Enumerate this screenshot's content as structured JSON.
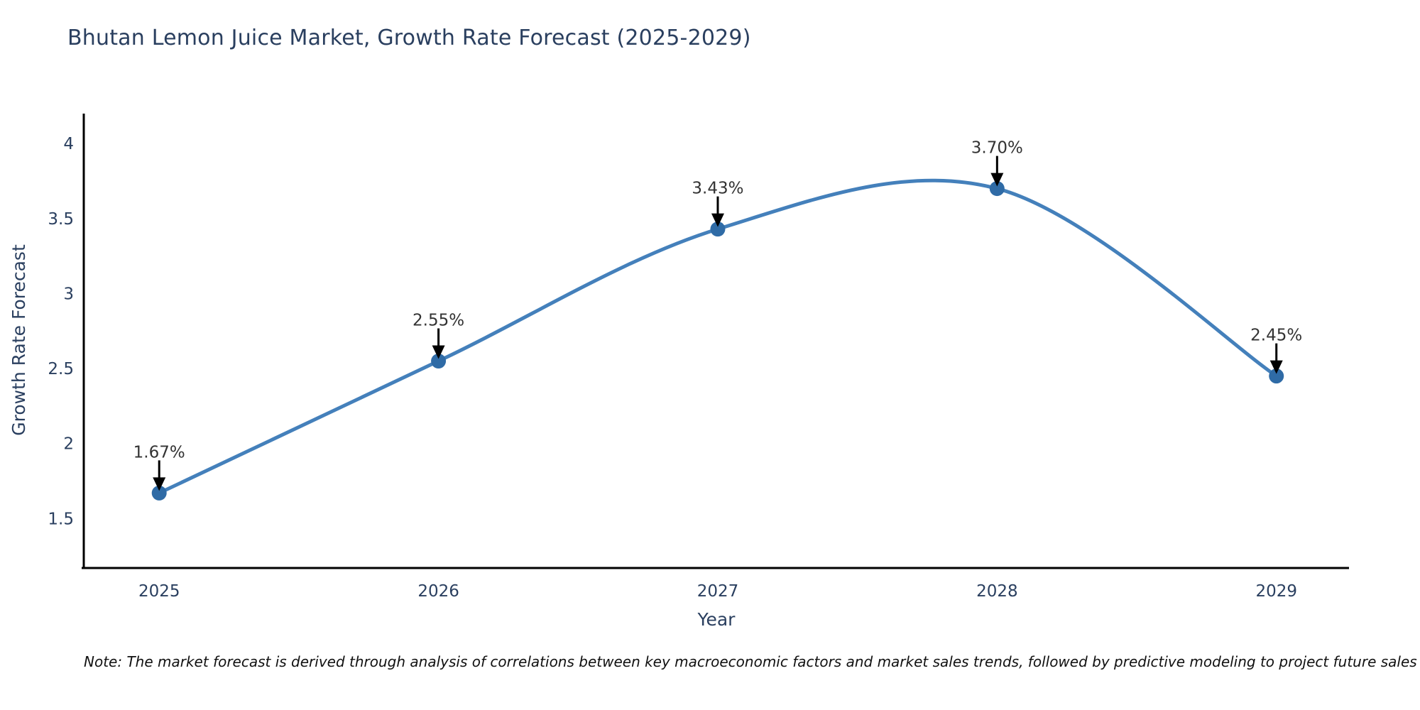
{
  "chart_data": {
    "type": "line",
    "line_shape": "spline",
    "title": "Bhutan Lemon Juice Market, Growth Rate Forecast (2025-2029)",
    "xlabel": "Year",
    "ylabel": "Growth Rate Forecast",
    "categories": [
      "2025",
      "2026",
      "2027",
      "2028",
      "2029"
    ],
    "values": [
      1.67,
      2.55,
      3.43,
      3.7,
      2.45
    ],
    "point_labels": [
      "1.67%",
      "2.55%",
      "3.43%",
      "3.70%",
      "2.45%"
    ],
    "yticks": [
      1.5,
      2,
      2.5,
      3,
      3.5,
      4
    ],
    "ylim": [
      1.17,
      4.2
    ],
    "xlim": [
      -0.27,
      4.26
    ],
    "grid": false,
    "legend": false,
    "annotations_arrow": "down-arrow-to-point",
    "colors": {
      "line": "#4480bb",
      "marker": "#2f6ba6",
      "arrow": "#000000",
      "axis": "#000000",
      "text": "#2a3f5f",
      "annotation": "#333333",
      "background": "#ffffff"
    },
    "note": "Note: The market forecast is derived through analysis of correlations between key macroeconomic factors and market sales trends, followed by predictive modeling to project future sales"
  }
}
